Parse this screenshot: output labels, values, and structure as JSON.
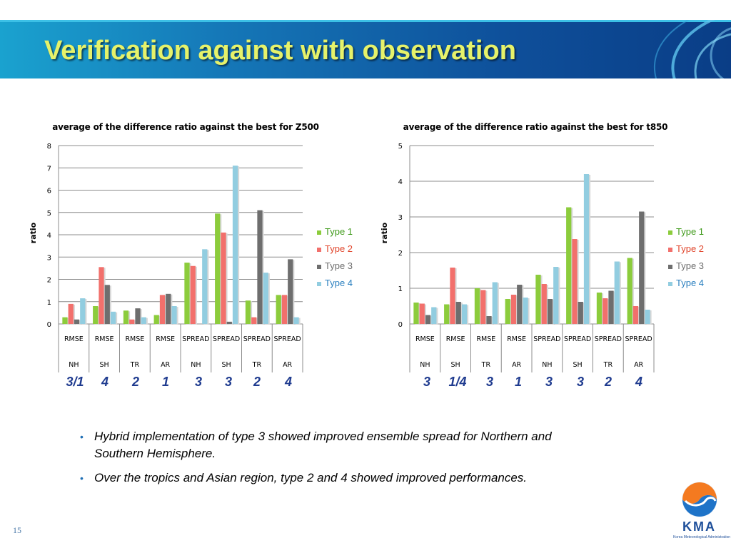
{
  "slide": {
    "title": "Verification against with observation",
    "page_number": "15"
  },
  "logo": {
    "text": "KMA",
    "subtitle": "Korea Meteorological Administration"
  },
  "colors": {
    "type1": "#8ccc3c",
    "type2": "#f2706c",
    "type3": "#6e6e6e",
    "type4": "#92cde0",
    "title": "#e6f26a",
    "rank": "#1f3b8f"
  },
  "legend": [
    {
      "label": "Type 1",
      "color": "#3f9a1a"
    },
    {
      "label": "Type 2",
      "color": "#e0442a"
    },
    {
      "label": "Type 3",
      "color": "#6e6e6e"
    },
    {
      "label": "Type 4",
      "color": "#2a7fbf"
    }
  ],
  "chart_data": [
    {
      "type": "bar",
      "title": "average of the difference ratio against the best for Z500",
      "ylabel": "ratio",
      "ylim": [
        0,
        8
      ],
      "yticks": [
        0,
        1,
        2,
        3,
        4,
        5,
        6,
        7,
        8
      ],
      "grid": true,
      "legend_position": "right",
      "categories": [
        [
          "RMSE",
          "NH"
        ],
        [
          "RMSE",
          "SH"
        ],
        [
          "RMSE",
          "TR"
        ],
        [
          "RMSE",
          "AR"
        ],
        [
          "SPREAD",
          "NH"
        ],
        [
          "SPREAD",
          "SH"
        ],
        [
          "SPREAD",
          "TR"
        ],
        [
          "SPREAD",
          "AR"
        ]
      ],
      "series": [
        {
          "name": "Type 1",
          "values": [
            0.3,
            0.8,
            0.6,
            0.4,
            2.75,
            4.95,
            1.05,
            1.3
          ]
        },
        {
          "name": "Type 2",
          "values": [
            0.9,
            2.55,
            0.2,
            1.3,
            2.6,
            4.1,
            0.3,
            1.3
          ]
        },
        {
          "name": "Type 3",
          "values": [
            0.2,
            1.75,
            0.7,
            1.35,
            0.0,
            0.1,
            5.1,
            2.9
          ]
        },
        {
          "name": "Type 4",
          "values": [
            1.15,
            0.55,
            0.3,
            0.8,
            3.35,
            7.1,
            2.3,
            0.3
          ]
        }
      ],
      "ranks": [
        "3/1",
        "4",
        "2",
        "1",
        "3",
        "3",
        "2",
        "4"
      ]
    },
    {
      "type": "bar",
      "title": "average of the difference ratio against the best for t850",
      "ylabel": "ratio",
      "ylim": [
        0,
        5
      ],
      "yticks": [
        0,
        1,
        2,
        3,
        4,
        5
      ],
      "grid": true,
      "legend_position": "right",
      "categories": [
        [
          "RMSE",
          "NH"
        ],
        [
          "RMSE",
          "SH"
        ],
        [
          "RMSE",
          "TR"
        ],
        [
          "RMSE",
          "AR"
        ],
        [
          "SPREAD",
          "NH"
        ],
        [
          "SPREAD",
          "SH"
        ],
        [
          "SPREAD",
          "TR"
        ],
        [
          "SPREAD",
          "AR"
        ]
      ],
      "series": [
        {
          "name": "Type 1",
          "values": [
            0.6,
            0.55,
            1.0,
            0.7,
            1.38,
            3.27,
            0.88,
            1.85
          ]
        },
        {
          "name": "Type 2",
          "values": [
            0.57,
            1.58,
            0.95,
            0.82,
            1.12,
            2.38,
            0.72,
            0.5
          ]
        },
        {
          "name": "Type 3",
          "values": [
            0.25,
            0.62,
            0.22,
            1.1,
            0.7,
            0.62,
            0.93,
            3.15
          ]
        },
        {
          "name": "Type 4",
          "values": [
            0.47,
            0.55,
            1.17,
            0.74,
            1.6,
            4.2,
            1.75,
            0.4
          ]
        }
      ],
      "ranks": [
        "3",
        "1/4",
        "3",
        "1",
        "3",
        "3",
        "2",
        "4"
      ]
    }
  ],
  "bullets": [
    {
      "line1": "Hybrid implementation of type 3 showed improved ensemble spread for Northern and",
      "line2": "Southern Hemisphere."
    },
    {
      "line1": "Over the tropics and Asian region, type 2 and 4 showed improved performances.",
      "line2": ""
    }
  ]
}
